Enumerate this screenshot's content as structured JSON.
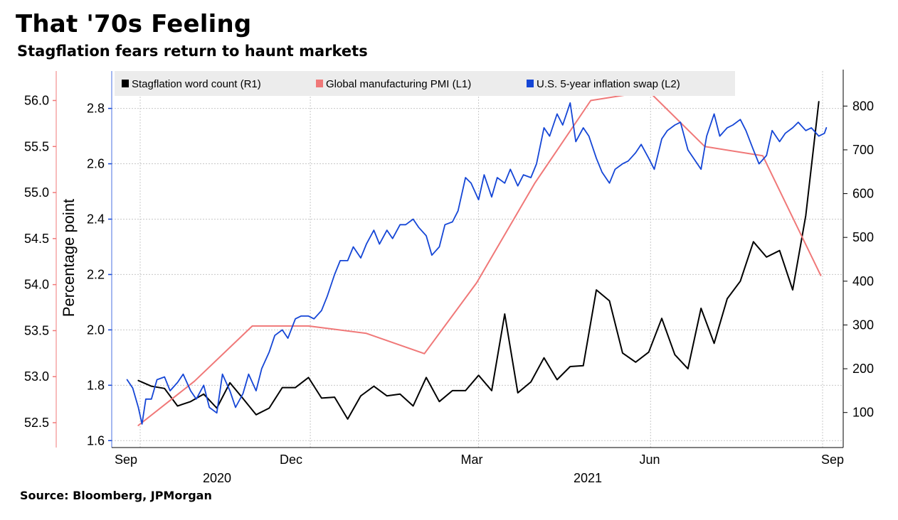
{
  "title": "That '70s Feeling",
  "subtitle": "Stagflation fears return to haunt markets",
  "source": "Source: Bloomberg, JPMorgan",
  "colors": {
    "word_count": "#000000",
    "pmi": "#f07878",
    "swap": "#1546d6",
    "grid": "#c8c8c8",
    "legend_bg": "#ececec"
  },
  "chart_data": {
    "type": "line",
    "ylabel": "Percentage point",
    "grid": true,
    "legend_position": "top",
    "axes": {
      "L1": {
        "ticks": [
          "52.5",
          "53.0",
          "53.5",
          "54.0",
          "54.5",
          "55.0",
          "55.5",
          "56.0"
        ],
        "range": [
          52.23,
          56.32
        ]
      },
      "L2": {
        "ticks": [
          "1.6",
          "1.8",
          "2.0",
          "2.2",
          "2.4",
          "2.6",
          "2.8"
        ],
        "range": [
          1.575,
          2.935
        ]
      },
      "R1": {
        "ticks": [
          "100",
          "200",
          "300",
          "400",
          "500",
          "600",
          "700",
          "800"
        ],
        "range": [
          20,
          880
        ]
      }
    },
    "x_ticks": [
      "Sep",
      "Dec",
      "Mar",
      "Jun",
      "Sep"
    ],
    "x_years": [
      "2020",
      "2021"
    ],
    "series": [
      {
        "name": "Stagflation word count (R1)",
        "axis": "R1",
        "x": [
          "2020-08-31",
          "2020-09-07",
          "2020-09-14",
          "2020-09-21",
          "2020-09-28",
          "2020-10-05",
          "2020-10-12",
          "2020-10-19",
          "2020-10-26",
          "2020-11-02",
          "2020-11-09",
          "2020-11-16",
          "2020-11-23",
          "2020-11-30",
          "2020-12-07",
          "2020-12-14",
          "2020-12-21",
          "2020-12-28",
          "2021-01-04",
          "2021-01-11",
          "2021-01-18",
          "2021-01-25",
          "2021-02-01",
          "2021-02-08",
          "2021-02-15",
          "2021-02-22",
          "2021-03-01",
          "2021-03-08",
          "2021-03-15",
          "2021-03-22",
          "2021-03-29",
          "2021-04-05",
          "2021-04-12",
          "2021-04-19",
          "2021-04-26",
          "2021-05-03",
          "2021-05-10",
          "2021-05-17",
          "2021-05-24",
          "2021-05-31",
          "2021-06-07",
          "2021-06-14",
          "2021-06-21",
          "2021-06-28",
          "2021-07-05",
          "2021-07-12",
          "2021-07-19",
          "2021-07-26",
          "2021-08-02",
          "2021-08-09",
          "2021-08-16",
          "2021-08-23",
          "2021-08-30"
        ],
        "values": [
          173,
          160,
          155,
          115,
          125,
          142,
          110,
          168,
          132,
          95,
          110,
          157,
          157,
          180,
          133,
          135,
          85,
          138,
          160,
          138,
          142,
          115,
          180,
          125,
          150,
          150,
          185,
          150,
          325,
          145,
          170,
          225,
          175,
          205,
          207,
          380,
          355,
          236,
          215,
          238,
          315,
          232,
          200,
          338,
          258,
          360,
          400,
          490,
          455,
          470,
          380,
          550,
          810
        ]
      },
      {
        "name": "Global manufacturing PMI (L1)",
        "axis": "L1",
        "x": [
          "2020-08-31",
          "2020-09-30",
          "2020-10-31",
          "2020-11-30",
          "2020-12-31",
          "2021-01-31",
          "2021-02-28",
          "2021-03-31",
          "2021-04-30",
          "2021-05-31",
          "2021-06-30",
          "2021-07-31",
          "2021-08-31"
        ],
        "values": [
          52.47,
          52.95,
          53.55,
          53.55,
          53.47,
          53.25,
          54.02,
          55.1,
          56.0,
          56.1,
          55.5,
          55.4,
          54.1
        ]
      },
      {
        "name": "U.S. 5-year inflation swap (L2)",
        "axis": "L2",
        "x": [
          "2020-08-25",
          "2020-08-28",
          "2020-08-31",
          "2020-09-02",
          "2020-09-04",
          "2020-09-07",
          "2020-09-10",
          "2020-09-14",
          "2020-09-17",
          "2020-09-21",
          "2020-09-24",
          "2020-09-28",
          "2020-10-01",
          "2020-10-05",
          "2020-10-08",
          "2020-10-12",
          "2020-10-15",
          "2020-10-19",
          "2020-10-22",
          "2020-10-26",
          "2020-10-29",
          "2020-11-02",
          "2020-11-05",
          "2020-11-09",
          "2020-11-12",
          "2020-11-16",
          "2020-11-19",
          "2020-11-23",
          "2020-11-26",
          "2020-11-30",
          "2020-12-03",
          "2020-12-07",
          "2020-12-10",
          "2020-12-14",
          "2020-12-17",
          "2020-12-21",
          "2020-12-24",
          "2020-12-28",
          "2020-12-31",
          "2021-01-04",
          "2021-01-07",
          "2021-01-11",
          "2021-01-14",
          "2021-01-18",
          "2021-01-21",
          "2021-01-25",
          "2021-01-28",
          "2021-02-01",
          "2021-02-04",
          "2021-02-08",
          "2021-02-11",
          "2021-02-15",
          "2021-02-18",
          "2021-02-22",
          "2021-02-25",
          "2021-03-01",
          "2021-03-04",
          "2021-03-08",
          "2021-03-11",
          "2021-03-15",
          "2021-03-18",
          "2021-03-22",
          "2021-03-25",
          "2021-03-29",
          "2021-04-01",
          "2021-04-05",
          "2021-04-08",
          "2021-04-12",
          "2021-04-15",
          "2021-04-19",
          "2021-04-22",
          "2021-04-26",
          "2021-04-29",
          "2021-05-03",
          "2021-05-06",
          "2021-05-10",
          "2021-05-13",
          "2021-05-17",
          "2021-05-20",
          "2021-05-24",
          "2021-05-27",
          "2021-05-31",
          "2021-06-03",
          "2021-06-07",
          "2021-06-10",
          "2021-06-14",
          "2021-06-17",
          "2021-06-21",
          "2021-06-24",
          "2021-06-28",
          "2021-07-01",
          "2021-07-05",
          "2021-07-08",
          "2021-07-12",
          "2021-07-15",
          "2021-07-19",
          "2021-07-22",
          "2021-07-26",
          "2021-07-29",
          "2021-08-02",
          "2021-08-05",
          "2021-08-09",
          "2021-08-12",
          "2021-08-16",
          "2021-08-19",
          "2021-08-23",
          "2021-08-26",
          "2021-08-30",
          "2021-09-02",
          "2021-09-03"
        ],
        "values": [
          1.82,
          1.79,
          1.72,
          1.66,
          1.75,
          1.75,
          1.82,
          1.83,
          1.78,
          1.81,
          1.84,
          1.78,
          1.75,
          1.8,
          1.72,
          1.7,
          1.84,
          1.78,
          1.72,
          1.77,
          1.84,
          1.78,
          1.86,
          1.92,
          1.98,
          2.0,
          1.97,
          2.04,
          2.05,
          2.05,
          2.04,
          2.07,
          2.12,
          2.2,
          2.25,
          2.25,
          2.3,
          2.26,
          2.31,
          2.36,
          2.31,
          2.36,
          2.33,
          2.38,
          2.38,
          2.4,
          2.37,
          2.34,
          2.27,
          2.3,
          2.38,
          2.39,
          2.43,
          2.55,
          2.53,
          2.47,
          2.56,
          2.48,
          2.55,
          2.53,
          2.58,
          2.52,
          2.56,
          2.55,
          2.6,
          2.73,
          2.7,
          2.78,
          2.74,
          2.82,
          2.68,
          2.73,
          2.7,
          2.62,
          2.57,
          2.53,
          2.58,
          2.6,
          2.61,
          2.64,
          2.67,
          2.62,
          2.58,
          2.69,
          2.72,
          2.74,
          2.75,
          2.65,
          2.62,
          2.58,
          2.7,
          2.78,
          2.7,
          2.73,
          2.74,
          2.76,
          2.72,
          2.65,
          2.6,
          2.63,
          2.72,
          2.68,
          2.71,
          2.73,
          2.75,
          2.72,
          2.73,
          2.7,
          2.71,
          2.73
        ]
      }
    ]
  }
}
